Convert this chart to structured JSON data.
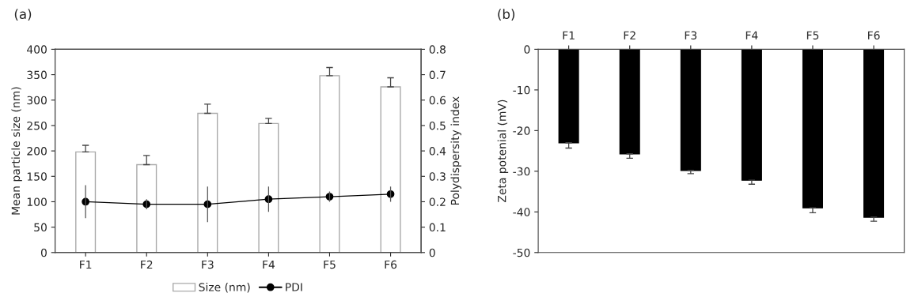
{
  "chart_data": [
    {
      "type": "bar",
      "title": "(a)",
      "ylabel": "Mean particle size (nm)",
      "y2label": "Polydispersity index",
      "categories": [
        "F1",
        "F2",
        "F3",
        "F4",
        "F5",
        "F6"
      ],
      "ylim": [
        0,
        400
      ],
      "yticks": [
        0,
        50,
        100,
        150,
        200,
        250,
        300,
        350,
        400
      ],
      "y2lim": [
        0,
        0.8
      ],
      "y2ticks": [
        0,
        0.1,
        0.2,
        0.3,
        0.4,
        0.5,
        0.6,
        0.7,
        0.8
      ],
      "grid": false,
      "legend": "bottom",
      "series": [
        {
          "name": "Size (nm)",
          "color": "#ffffff",
          "values": [
            198,
            173,
            274,
            254,
            348,
            326
          ],
          "errors": [
            [
              198,
              211
            ],
            [
              173,
              191
            ],
            [
              274,
              292
            ],
            [
              254,
              264
            ],
            [
              348,
              364
            ],
            [
              326,
              344
            ]
          ]
        },
        {
          "name": "PDI",
          "type": "line",
          "axis": "y2",
          "color": "#000000",
          "marker": "circle",
          "line_style": "solid",
          "values": [
            0.2,
            0.19,
            0.19,
            0.21,
            0.22,
            0.23
          ],
          "errors": [
            0.065,
            0.02,
            0.07,
            0.05,
            0.02,
            0.03
          ]
        }
      ]
    },
    {
      "type": "bar",
      "title": "(b)",
      "ylabel": "Zeta potenial (mV)",
      "categories": [
        "F1",
        "F2",
        "F3",
        "F4",
        "F5",
        "F6"
      ],
      "ylim": [
        -50,
        0
      ],
      "yticks": [
        -50,
        -40,
        -30,
        -20,
        -10,
        0
      ],
      "grid": false,
      "legend": false,
      "series": [
        {
          "color": "#000000",
          "values": [
            -23,
            -25.7,
            -29.8,
            -32.2,
            -39,
            -41.3
          ],
          "errors": [
            [
              -24.3,
              -23
            ],
            [
              -26.8,
              -25.7
            ],
            [
              -30.6,
              -29.8
            ],
            [
              -33.2,
              -32.2
            ],
            [
              -40.2,
              -39
            ],
            [
              -42.3,
              -41.3
            ]
          ]
        }
      ]
    }
  ]
}
